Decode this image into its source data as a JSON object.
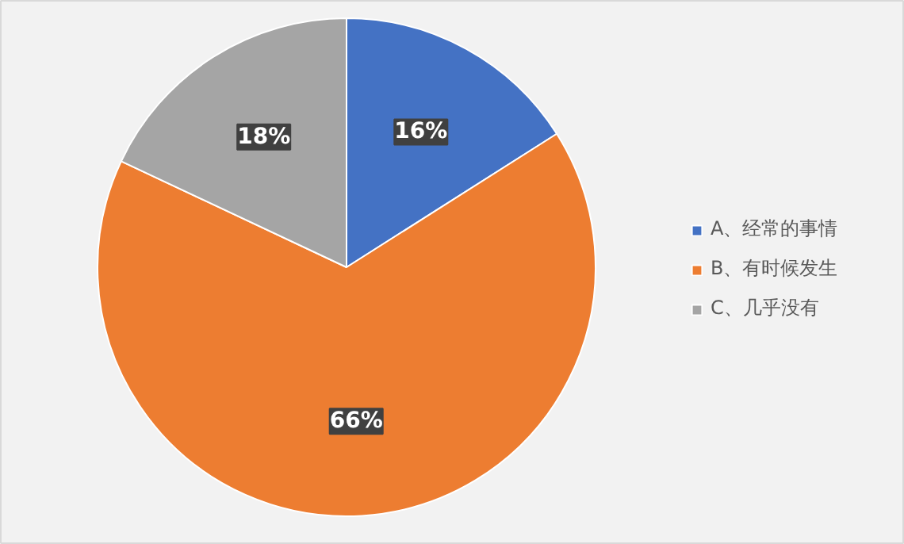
{
  "chart_data": {
    "type": "pie",
    "categories": [
      "A、经常的事情",
      "B、有时候发生",
      "C、几乎没有"
    ],
    "values": [
      16,
      66,
      18
    ],
    "colors": [
      "#4472c4",
      "#ed7d31",
      "#a5a5a5"
    ],
    "value_labels": [
      "16%",
      "66%",
      "18%"
    ],
    "legend": "right"
  }
}
